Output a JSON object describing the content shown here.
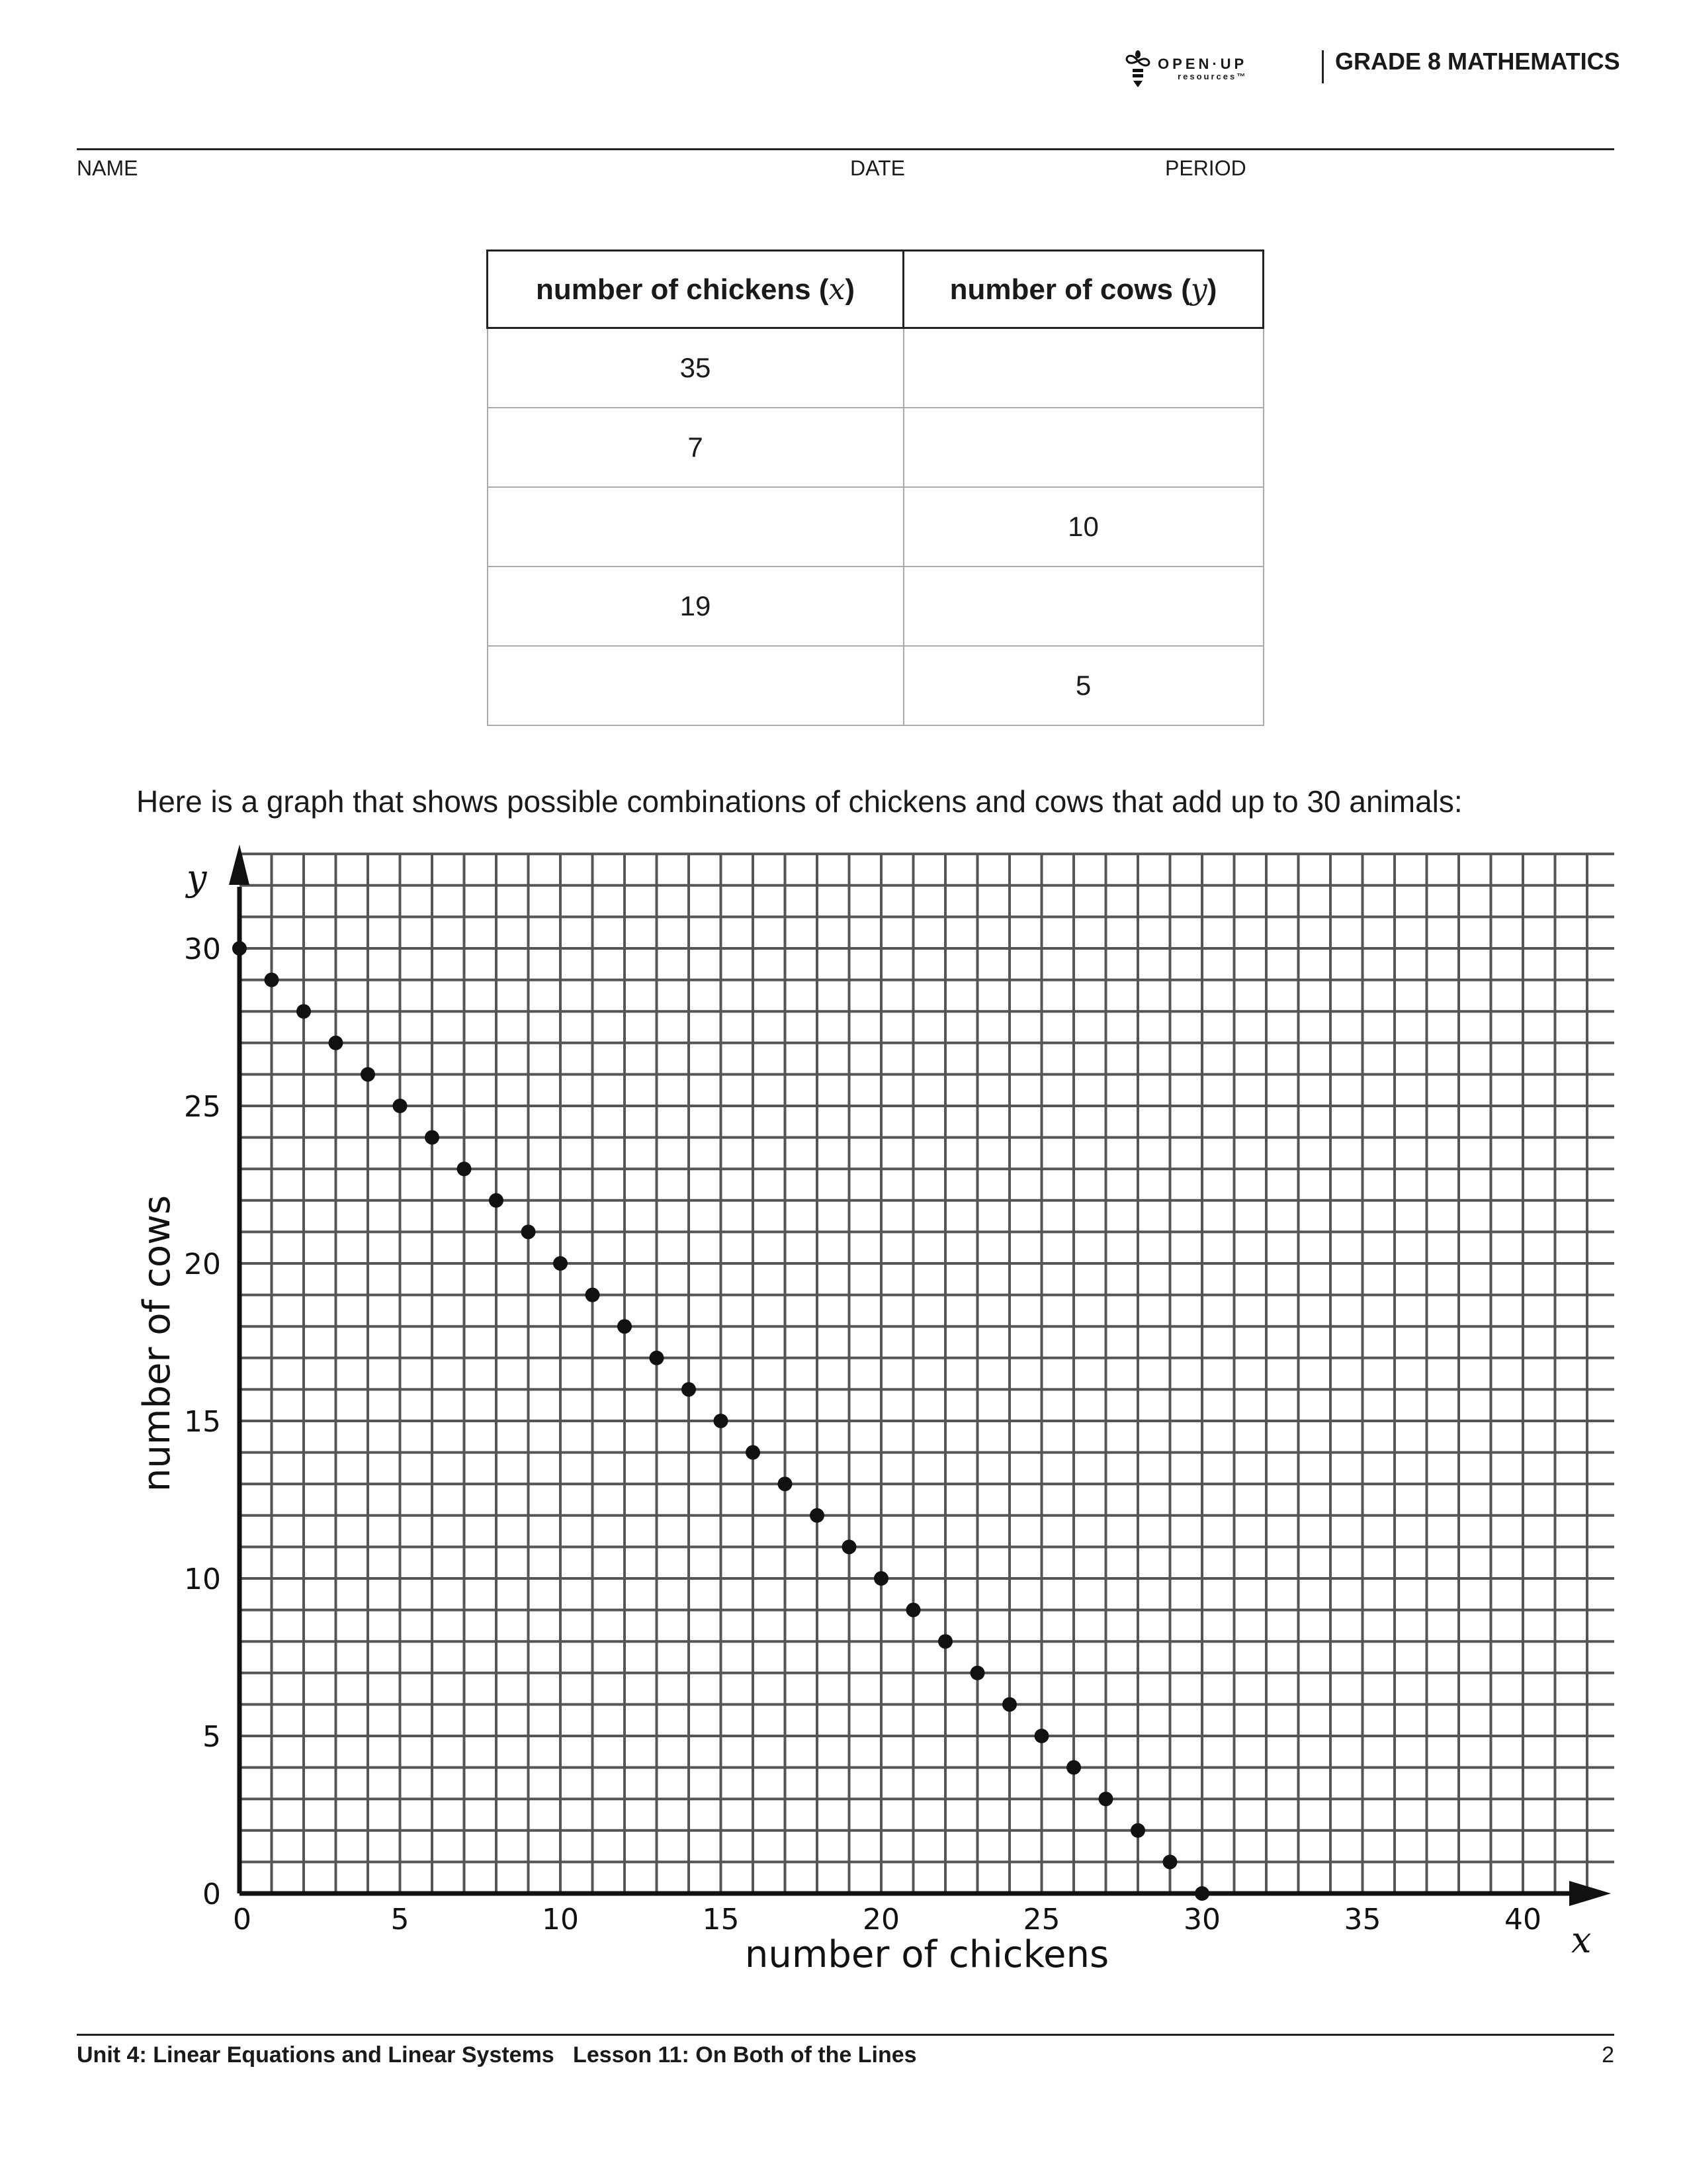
{
  "header": {
    "logo_text": "OPEN·UP",
    "logo_sub": "resources™",
    "grade": "GRADE 8 MATHEMATICS",
    "name_label": "NAME",
    "date_label": "DATE",
    "period_label": "PERIOD"
  },
  "table": {
    "headers": [
      {
        "text": "number of chickens (",
        "var": "x",
        "close": ")"
      },
      {
        "text": "number of cows (",
        "var": "y",
        "close": ")"
      }
    ],
    "rows": [
      [
        "35",
        ""
      ],
      [
        "7",
        ""
      ],
      [
        "",
        "10"
      ],
      [
        "19",
        ""
      ],
      [
        "",
        "5"
      ]
    ]
  },
  "prompt": "Here is a graph that shows possible combinations of chickens and cows that add up to 30 animals:",
  "chart_data": {
    "type": "scatter",
    "xlabel": "number of chickens",
    "ylabel": "number of cows",
    "x_axis_var": "x",
    "y_axis_var": "y",
    "xlim": [
      0,
      42
    ],
    "ylim": [
      0,
      33
    ],
    "x_ticks": [
      "0",
      "5",
      "10",
      "15",
      "20",
      "25",
      "30",
      "35",
      "40"
    ],
    "y_ticks": [
      "0",
      "5",
      "10",
      "15",
      "20",
      "25",
      "30"
    ],
    "grid": true,
    "point_color": "#111111",
    "x": [
      0,
      1,
      2,
      3,
      4,
      5,
      6,
      7,
      8,
      9,
      10,
      11,
      12,
      13,
      14,
      15,
      16,
      17,
      18,
      19,
      20,
      21,
      22,
      23,
      24,
      25,
      26,
      27,
      28,
      29,
      30
    ],
    "y": [
      30,
      29,
      28,
      27,
      26,
      25,
      24,
      23,
      22,
      21,
      20,
      19,
      18,
      17,
      16,
      15,
      14,
      13,
      12,
      11,
      10,
      9,
      8,
      7,
      6,
      5,
      4,
      3,
      2,
      1,
      0
    ]
  },
  "footer": {
    "text": "Unit 4: Linear Equations and Linear Systems   Lesson 11: On Both of the Lines",
    "page": "2"
  }
}
